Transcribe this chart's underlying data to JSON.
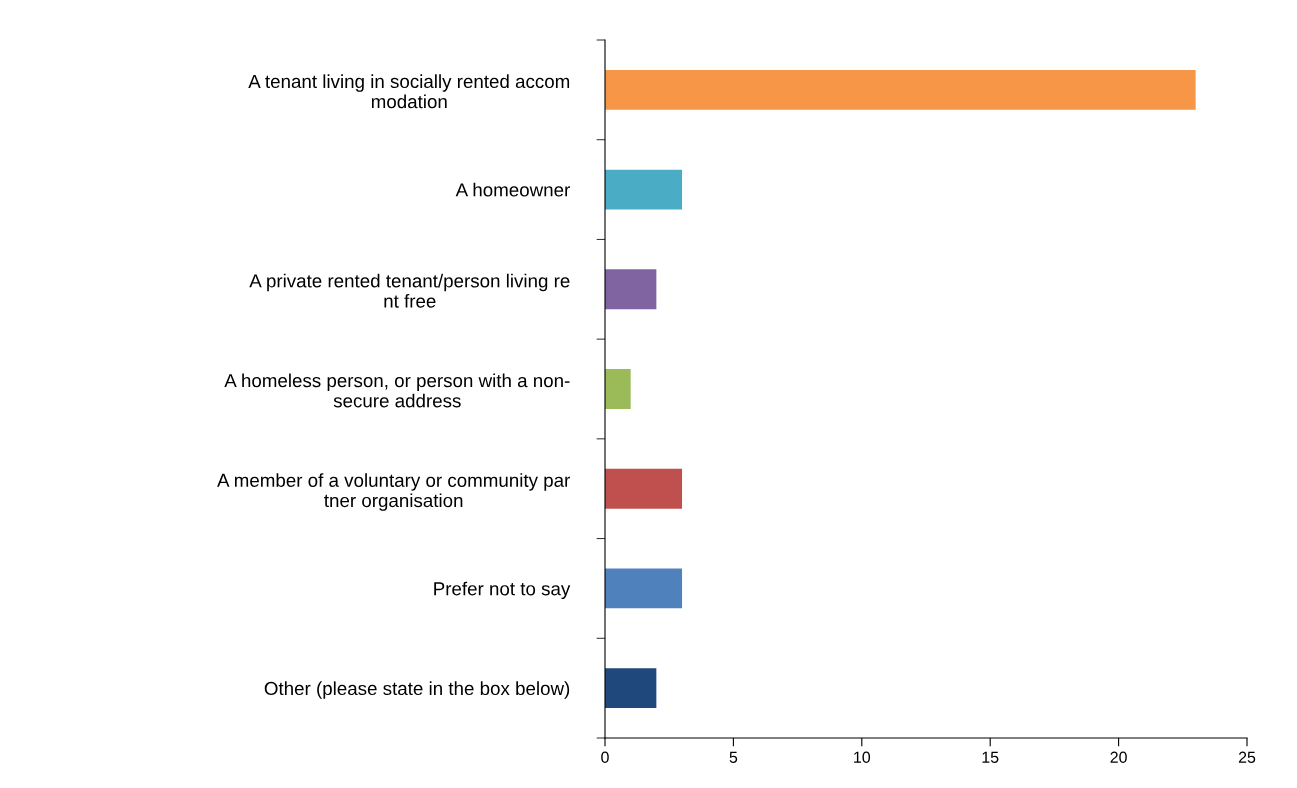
{
  "chart_data": {
    "type": "bar",
    "orientation": "horizontal",
    "categories": [
      "A tenant living in socially rented accom\nmodation",
      "A homeowner",
      "A private rented tenant/person living re\nnt free",
      "A homeless person, or person with a non-\nsecure address",
      "A member of a voluntary or community par\ntner organisation",
      "Prefer not to say",
      "Other (please state in the box below)"
    ],
    "values": [
      23,
      3,
      2,
      1,
      3,
      3,
      2
    ],
    "colors": [
      "#f79646",
      "#4bacc6",
      "#8064a2",
      "#9bbb59",
      "#c0504d",
      "#4f81bd",
      "#1f497d"
    ],
    "xlim": [
      0,
      25
    ],
    "xticks": [
      0,
      5,
      10,
      15,
      20,
      25
    ],
    "grid": false,
    "legend": false
  }
}
